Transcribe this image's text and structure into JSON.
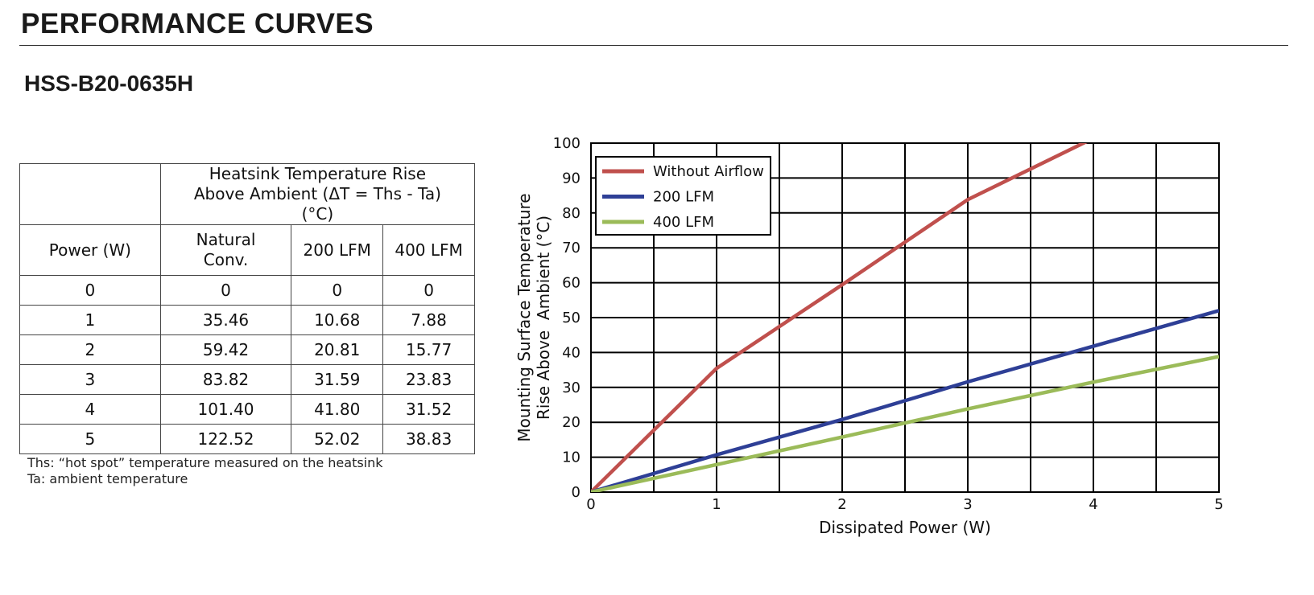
{
  "header": {
    "section_title": "PERFORMANCE CURVES",
    "model": "HSS-B20-0635H"
  },
  "table": {
    "group_header": "Heatsink Temperature Rise Above Ambient (ΔT = Ths - Ta) (°C)",
    "columns": [
      "Power (W)",
      "Natural Conv.",
      "200 LFM",
      "400 LFM"
    ],
    "rows": [
      [
        "0",
        "0",
        "0",
        "0"
      ],
      [
        "1",
        "35.46",
        "10.68",
        "7.88"
      ],
      [
        "2",
        "59.42",
        "20.81",
        "15.77"
      ],
      [
        "3",
        "83.82",
        "31.59",
        "23.83"
      ],
      [
        "4",
        "101.40",
        "41.80",
        "31.52"
      ],
      [
        "5",
        "122.52",
        "52.02",
        "38.83"
      ]
    ],
    "notes": [
      "Ths: “hot spot” temperature measured on the heatsink",
      "Ta: ambient temperature"
    ]
  },
  "chart_data": {
    "type": "line",
    "xlabel": "Dissipated Power (W)",
    "ylabel": "Mounting Surface Temperature Rise Above  Ambient (°C)",
    "xlim": [
      0,
      5
    ],
    "ylim": [
      0,
      100
    ],
    "xticks": [
      0,
      1,
      2,
      3,
      4,
      5
    ],
    "yticks": [
      0,
      10,
      20,
      30,
      40,
      50,
      60,
      70,
      80,
      90,
      100
    ],
    "grid": true,
    "legend_position": "top-left",
    "x": [
      0,
      1,
      2,
      3,
      4,
      5
    ],
    "series": [
      {
        "name": "Without Airflow",
        "color": "#c0504d",
        "values": [
          0,
          35.46,
          59.42,
          83.82,
          101.4,
          122.52
        ]
      },
      {
        "name": "200 LFM",
        "color": "#2e3f96",
        "values": [
          0,
          10.68,
          20.81,
          31.59,
          41.8,
          52.02
        ]
      },
      {
        "name": "400 LFM",
        "color": "#9bbb59",
        "values": [
          0,
          7.88,
          15.77,
          23.83,
          31.52,
          38.83
        ]
      }
    ]
  }
}
